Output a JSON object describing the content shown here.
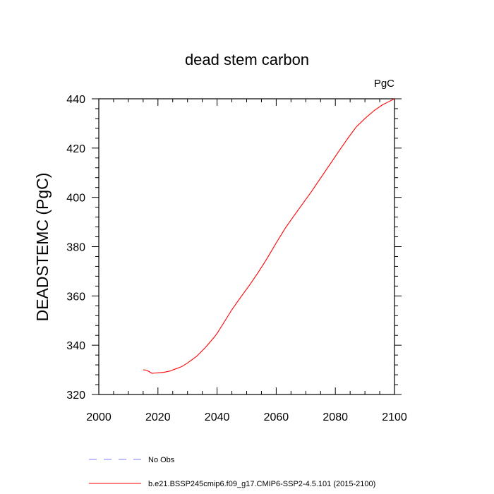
{
  "chart_data": {
    "type": "line",
    "title": "dead stem carbon",
    "units": "PgC",
    "xlabel": "",
    "ylabel": "DEADSTEMC  (PgC)",
    "xlim": [
      2000,
      2100
    ],
    "ylim": [
      320,
      440
    ],
    "xticks": [
      2000,
      2020,
      2040,
      2060,
      2080,
      2100
    ],
    "yticks": [
      320,
      340,
      360,
      380,
      400,
      420,
      440
    ],
    "grid": false,
    "legend_position": "bottom",
    "series": [
      {
        "name": "No Obs",
        "color": "#7f7fff",
        "dash": "dashed",
        "x": [],
        "y": []
      },
      {
        "name": "b.e21.BSSP245cmip6.f09_g17.CMIP6-SSP2-4.5.101 (2015-2100)",
        "color": "#ff0000",
        "dash": "solid",
        "x": [
          2015,
          2016,
          2017,
          2018,
          2019,
          2020,
          2022,
          2024,
          2026,
          2028,
          2030,
          2033,
          2036,
          2039,
          2040,
          2042,
          2045,
          2048,
          2051,
          2054,
          2057,
          2060,
          2063,
          2066,
          2069,
          2072,
          2075,
          2078,
          2081,
          2084,
          2087,
          2090,
          2093,
          2096,
          2098,
          2100
        ],
        "y": [
          330.0,
          329.9,
          329.3,
          328.6,
          328.7,
          328.8,
          329.0,
          329.5,
          330.4,
          331.3,
          332.8,
          335.4,
          339.0,
          343.2,
          344.8,
          348.6,
          354.4,
          359.5,
          364.4,
          369.7,
          375.4,
          381.5,
          387.4,
          392.5,
          397.5,
          402.5,
          407.8,
          413.1,
          418.4,
          423.6,
          428.5,
          432.0,
          435.1,
          437.6,
          438.8,
          440.0
        ]
      }
    ]
  }
}
